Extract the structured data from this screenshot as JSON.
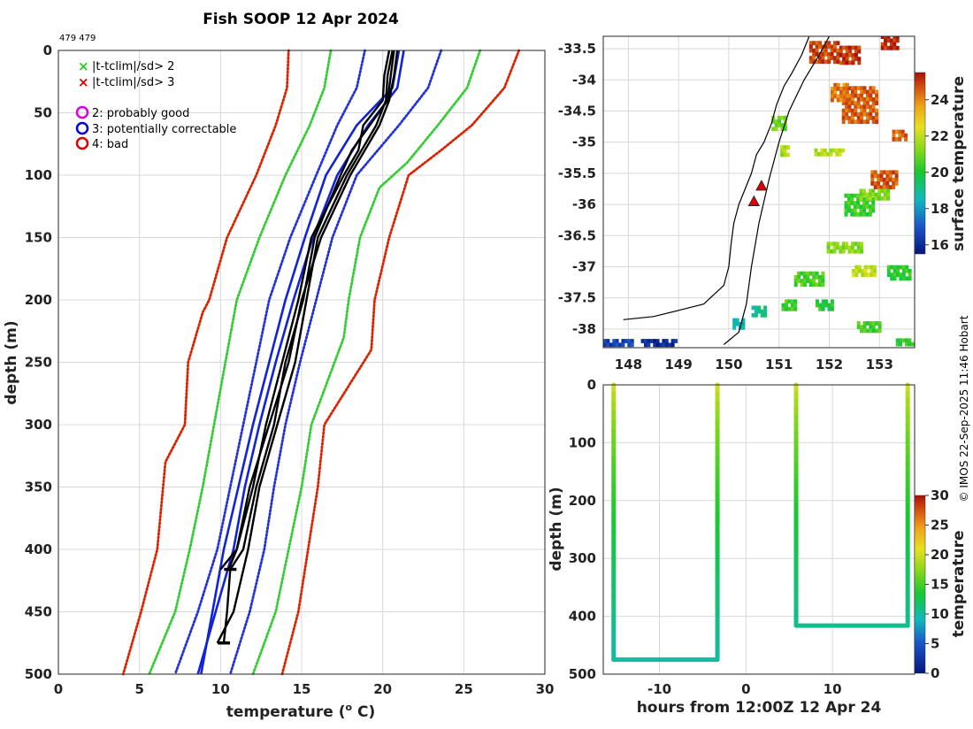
{
  "chart_data": [
    {
      "type": "line",
      "title": "Fish SOOP 12 Apr 2024",
      "subtitle": "479 479",
      "xlabel": "temperature (",
      "xlabel_sup": "o",
      "xlabel_unit": " C)",
      "ylabel": "depth (m)",
      "xlim": [
        0,
        30
      ],
      "ylim": [
        0,
        500
      ],
      "y_reversed": true,
      "grid": true,
      "xticks": [
        0,
        5,
        10,
        15,
        20,
        25,
        30
      ],
      "yticks": [
        0,
        50,
        100,
        150,
        200,
        250,
        300,
        350,
        400,
        450,
        500
      ],
      "legend": {
        "position": "top-left",
        "entries": [
          {
            "marker": "x",
            "color": "#22cc22",
            "label": "|t-tclim|/sd> 2"
          },
          {
            "marker": "x",
            "color": "#dd0000",
            "label": "|t-tclim|/sd> 3"
          },
          {
            "marker": "o",
            "color": "#dd00dd",
            "label": "2: probably good"
          },
          {
            "marker": "o",
            "color": "#0000dd",
            "label": "3: potentially correctable"
          },
          {
            "marker": "o",
            "color": "#dd0000",
            "label": "4: bad"
          }
        ]
      },
      "series": [
        {
          "name": "clim-3sd-low",
          "color": "#dd2200",
          "style": "dotted",
          "depth": [
            0,
            30,
            60,
            100,
            150,
            200,
            210,
            250,
            300,
            330,
            400,
            450,
            500
          ],
          "temp": [
            14.2,
            14.1,
            13.4,
            12.2,
            10.4,
            9.3,
            8.9,
            8.0,
            7.8,
            6.6,
            6.1,
            5.1,
            4.0
          ]
        },
        {
          "name": "clim-3sd-high",
          "color": "#dd2200",
          "style": "dotted",
          "depth": [
            0,
            30,
            60,
            80,
            100,
            150,
            200,
            240,
            300,
            350,
            400,
            450,
            500
          ],
          "temp": [
            28.4,
            27.5,
            25.5,
            23.6,
            21.6,
            20.4,
            19.5,
            19.3,
            16.4,
            16.0,
            15.4,
            14.8,
            13.8
          ]
        },
        {
          "name": "clim-2sd-low",
          "color": "#33cc33",
          "style": "dotted",
          "depth": [
            0,
            30,
            60,
            100,
            150,
            200,
            250,
            300,
            350,
            400,
            450,
            500
          ],
          "temp": [
            16.8,
            16.4,
            15.5,
            14.0,
            12.4,
            11.0,
            10.3,
            9.6,
            8.9,
            8.1,
            7.2,
            5.6
          ]
        },
        {
          "name": "clim-2sd-high",
          "color": "#33cc33",
          "style": "dotted",
          "depth": [
            0,
            30,
            60,
            90,
            110,
            150,
            200,
            230,
            300,
            350,
            400,
            450,
            500
          ],
          "temp": [
            26.0,
            25.2,
            23.4,
            21.5,
            19.8,
            18.6,
            17.9,
            17.6,
            15.6,
            15.0,
            14.2,
            13.4,
            12.0
          ]
        },
        {
          "name": "clim-sd-low",
          "color": "#2233dd",
          "style": "dotted",
          "depth": [
            0,
            30,
            60,
            100,
            150,
            200,
            250,
            300,
            350,
            400,
            450,
            500
          ],
          "temp": [
            18.9,
            18.4,
            17.2,
            15.9,
            14.3,
            13.0,
            12.2,
            11.4,
            10.6,
            9.8,
            8.6,
            7.2
          ]
        },
        {
          "name": "clim-sd-high",
          "color": "#2233dd",
          "style": "dotted",
          "depth": [
            0,
            30,
            60,
            100,
            150,
            200,
            250,
            300,
            350,
            400,
            450,
            500
          ],
          "temp": [
            23.6,
            22.8,
            21.0,
            18.4,
            16.9,
            15.9,
            14.9,
            14.0,
            13.3,
            12.7,
            11.8,
            10.6
          ]
        },
        {
          "name": "clim-mean-a",
          "color": "#1122dd",
          "style": "solid",
          "depth": [
            0,
            30,
            60,
            100,
            150,
            200,
            250,
            300,
            350,
            400,
            450,
            500
          ],
          "temp": [
            21.3,
            20.9,
            19.1,
            17.2,
            15.7,
            14.5,
            13.4,
            12.4,
            11.5,
            10.8,
            9.7,
            8.6
          ]
        },
        {
          "name": "clim-mean-b",
          "color": "#1122dd",
          "style": "solid",
          "depth": [
            0,
            30,
            60,
            100,
            150,
            200,
            250,
            300,
            350,
            400,
            450,
            500
          ],
          "temp": [
            21.0,
            20.6,
            18.4,
            16.5,
            15.2,
            14.0,
            13.0,
            12.0,
            11.1,
            10.2,
            9.5,
            8.8
          ]
        },
        {
          "name": "obs-1",
          "color": "#000000",
          "style": "solid",
          "depth": [
            0,
            20,
            40,
            60,
            80,
            100,
            150,
            200,
            250,
            300,
            350,
            400,
            416,
            450,
            475
          ],
          "temp": [
            20.7,
            20.5,
            20.3,
            19.2,
            18.1,
            17.4,
            15.8,
            15.1,
            14.0,
            13.3,
            12.2,
            11.4,
            10.6,
            10.4,
            10.2
          ]
        },
        {
          "name": "obs-2",
          "color": "#000000",
          "style": "solid",
          "depth": [
            0,
            20,
            40,
            60,
            80,
            100,
            150,
            200,
            250,
            300,
            350,
            400,
            416
          ],
          "temp": [
            20.4,
            20.1,
            20.0,
            18.8,
            18.5,
            17.6,
            15.6,
            14.8,
            13.8,
            12.8,
            12.0,
            11.0,
            10.0
          ]
        },
        {
          "name": "obs-3",
          "color": "#000000",
          "style": "solid",
          "depth": [
            0,
            20,
            40,
            60,
            80,
            100,
            150,
            200,
            250,
            300,
            350,
            400,
            450,
            475
          ],
          "temp": [
            20.6,
            20.3,
            20.2,
            19.6,
            18.7,
            17.8,
            16.0,
            15.3,
            14.6,
            13.5,
            12.4,
            11.7,
            10.8,
            9.8
          ]
        },
        {
          "name": "obs-4",
          "color": "#000000",
          "style": "solid",
          "depth": [
            0,
            20,
            40,
            60,
            80,
            100,
            150,
            200,
            250,
            300,
            350,
            400,
            416
          ],
          "temp": [
            20.9,
            20.7,
            20.4,
            19.8,
            18.9,
            18.0,
            16.2,
            15.0,
            14.2,
            13.0,
            11.8,
            11.0,
            10.5
          ]
        }
      ]
    },
    {
      "type": "heatmap",
      "xlim": [
        147.5,
        153.7
      ],
      "ylim": [
        -38.3,
        -33.3
      ],
      "xticks": [
        148,
        149,
        150,
        151,
        152,
        153
      ],
      "xtick_labels": [
        "148",
        "149",
        "150",
        "151",
        "152",
        "153"
      ],
      "yticks": [
        -33.5,
        -34,
        -34.5,
        -35,
        -35.5,
        -36,
        -36.5,
        -37,
        -37.5,
        -38
      ],
      "ytick_labels": [
        "-33.5",
        "-34",
        "-34.5",
        "-35",
        "-35.5",
        "-36",
        "-36.5",
        "-37",
        "-37.5",
        "-38"
      ],
      "colorbar": {
        "label": "surface temperature",
        "min": 15.5,
        "max": 25.5,
        "ticks": [
          16,
          18,
          20,
          22,
          24
        ]
      },
      "drop_locations": [
        {
          "lon": 150.65,
          "lat": -35.7
        },
        {
          "lon": 150.5,
          "lat": -35.95
        }
      ],
      "coast_lon": [
        147.9,
        148.5,
        149.0,
        149.5,
        149.9,
        150.0,
        150.05,
        150.1,
        150.2,
        150.3,
        150.45,
        150.55,
        150.7,
        150.85,
        150.95,
        151.1,
        151.25,
        151.45,
        151.6
      ],
      "coast_lat": [
        -37.85,
        -37.8,
        -37.7,
        -37.6,
        -37.3,
        -37.0,
        -36.6,
        -36.3,
        -36.0,
        -35.8,
        -35.5,
        -35.2,
        -35.0,
        -34.7,
        -34.4,
        -34.1,
        -33.9,
        -33.6,
        -33.3
      ],
      "track_lon": [
        149.9,
        150.2,
        150.35,
        150.45,
        150.6,
        150.8,
        151.0,
        151.2,
        151.5,
        151.8,
        152.0
      ],
      "track_lat": [
        -38.25,
        -38.05,
        -37.6,
        -37.0,
        -36.3,
        -35.6,
        -35.0,
        -34.5,
        -34.0,
        -33.6,
        -33.3
      ],
      "patches": [
        {
          "lon": 152.6,
          "lat": -34.4,
          "dx": 0.7,
          "dy": 0.6,
          "temp": 24.5
        },
        {
          "lon": 151.9,
          "lat": -33.55,
          "dx": 0.6,
          "dy": 0.35,
          "temp": 24.8
        },
        {
          "lon": 152.2,
          "lat": -34.2,
          "dx": 0.35,
          "dy": 0.3,
          "temp": 24.2
        },
        {
          "lon": 152.4,
          "lat": -33.6,
          "dx": 0.4,
          "dy": 0.3,
          "temp": 25.0
        },
        {
          "lon": 153.2,
          "lat": -33.4,
          "dx": 0.35,
          "dy": 0.25,
          "temp": 25.2
        },
        {
          "lon": 153.1,
          "lat": -35.6,
          "dx": 0.55,
          "dy": 0.3,
          "temp": 24.6
        },
        {
          "lon": 152.6,
          "lat": -36.0,
          "dx": 0.6,
          "dy": 0.35,
          "temp": 20.4
        },
        {
          "lon": 152.9,
          "lat": -35.85,
          "dx": 0.6,
          "dy": 0.2,
          "temp": 21.2
        },
        {
          "lon": 151.0,
          "lat": -34.7,
          "dx": 0.3,
          "dy": 0.25,
          "temp": 21.0
        },
        {
          "lon": 151.1,
          "lat": -35.15,
          "dx": 0.15,
          "dy": 0.2,
          "temp": 21.6
        },
        {
          "lon": 152.0,
          "lat": -35.15,
          "dx": 0.6,
          "dy": 0.1,
          "temp": 21.8
        },
        {
          "lon": 151.6,
          "lat": -37.2,
          "dx": 0.6,
          "dy": 0.25,
          "temp": 20.6
        },
        {
          "lon": 152.3,
          "lat": -36.7,
          "dx": 0.7,
          "dy": 0.2,
          "temp": 21.3
        },
        {
          "lon": 152.7,
          "lat": -37.05,
          "dx": 0.5,
          "dy": 0.15,
          "temp": 22.0
        },
        {
          "lon": 153.4,
          "lat": -37.1,
          "dx": 0.5,
          "dy": 0.25,
          "temp": 20.2
        },
        {
          "lon": 150.6,
          "lat": -37.7,
          "dx": 0.3,
          "dy": 0.15,
          "temp": 19.0
        },
        {
          "lon": 150.2,
          "lat": -37.9,
          "dx": 0.25,
          "dy": 0.15,
          "temp": 18.6
        },
        {
          "lon": 148.6,
          "lat": -38.22,
          "dx": 0.7,
          "dy": 0.12,
          "temp": 16.0
        },
        {
          "lon": 147.8,
          "lat": -38.22,
          "dx": 0.6,
          "dy": 0.12,
          "temp": 16.6
        },
        {
          "lon": 152.8,
          "lat": -37.95,
          "dx": 0.5,
          "dy": 0.15,
          "temp": 20.5
        },
        {
          "lon": 153.5,
          "lat": -38.2,
          "dx": 0.35,
          "dy": 0.1,
          "temp": 20.2
        },
        {
          "lon": 151.9,
          "lat": -37.6,
          "dx": 0.35,
          "dy": 0.15,
          "temp": 20.0
        },
        {
          "lon": 151.2,
          "lat": -37.6,
          "dx": 0.3,
          "dy": 0.15,
          "temp": 20.4
        },
        {
          "lon": 153.4,
          "lat": -34.9,
          "dx": 0.3,
          "dy": 0.2,
          "temp": 24.4
        }
      ]
    },
    {
      "type": "scatter",
      "xlabel": "hours from 12:00Z 12 Apr 24",
      "ylabel": "depth (m)",
      "xlim": [
        -16.5,
        19.5
      ],
      "ylim": [
        0,
        500
      ],
      "y_reversed": true,
      "xticks": [
        -10,
        0,
        10
      ],
      "yticks": [
        0,
        100,
        200,
        300,
        400,
        500
      ],
      "colorbar": {
        "label": "temperature",
        "min": 0,
        "max": 30,
        "ticks": [
          0,
          5,
          10,
          15,
          20,
          25,
          30
        ]
      },
      "dives": [
        {
          "x_down": -15.3,
          "x_up": -3.3,
          "bottom_depth": 475,
          "surface_temp": 21,
          "bottom_temp": 10
        },
        {
          "x_down": 5.8,
          "x_up": 18.7,
          "bottom_depth": 416,
          "surface_temp": 21,
          "bottom_temp": 10.5
        }
      ]
    }
  ],
  "copyright": "© IMOS 22-Sep-2025 11:46 Hobart"
}
